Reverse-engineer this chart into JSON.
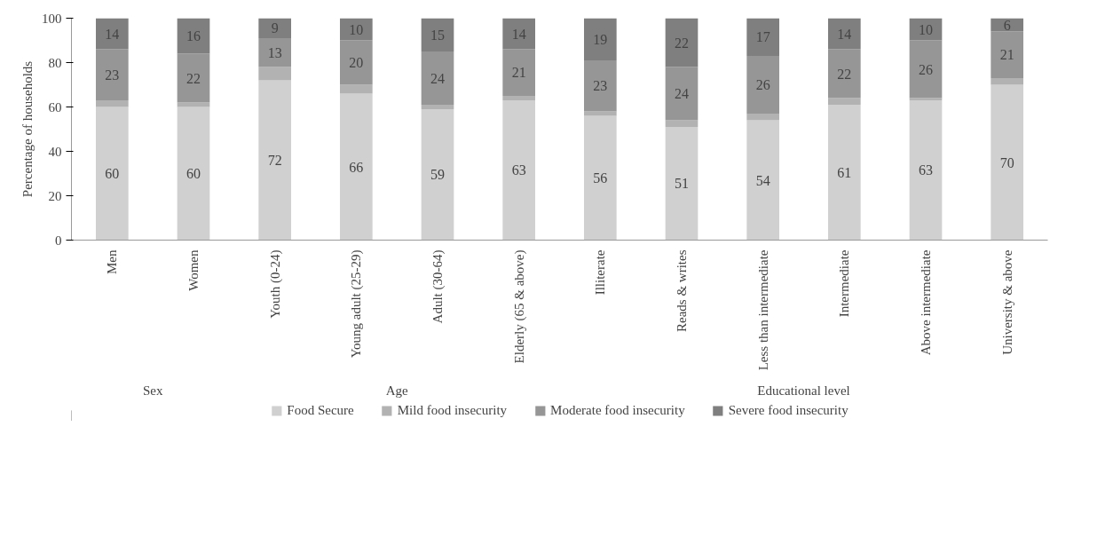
{
  "chart_data": {
    "type": "bar",
    "stacked": true,
    "ylabel": "Percentage of households",
    "categories": [
      "Men",
      "Women",
      "Youth (0-24)",
      "Young adult (25-29)",
      "Adult (30-64)",
      "Elderly (65 & above)",
      "Illiterate",
      "Reads & writes",
      "Less than intermediate",
      "Intermediate",
      "Above intermediate",
      "University & above"
    ],
    "series": [
      {
        "name": "Food Secure",
        "color": "#d0d0d0",
        "values": [
          60,
          60,
          72,
          66,
          59,
          63,
          56,
          51,
          54,
          61,
          63,
          70
        ],
        "value_labels": [
          "60",
          "60",
          "72",
          "66",
          "59",
          "63",
          "56",
          "51",
          "54",
          "61",
          "63",
          "70"
        ]
      },
      {
        "name": "Mild food insecurity",
        "color": "#b2b2b2",
        "values": [
          3,
          2,
          6,
          4,
          2,
          2,
          2,
          3,
          3,
          3,
          1,
          3
        ]
      },
      {
        "name": "Moderate food insecurity",
        "color": "#969696",
        "values": [
          23,
          22,
          13,
          20,
          24,
          21,
          23,
          24,
          26,
          22,
          26,
          21
        ],
        "value_labels": [
          "23",
          "22",
          "13",
          "20",
          "24",
          "21",
          "23",
          "24",
          "26",
          "22",
          "26",
          "21"
        ]
      },
      {
        "name": "Severe food insecurity",
        "color": "#7f7f7f",
        "values": [
          14,
          16,
          9,
          10,
          15,
          14,
          19,
          22,
          17,
          14,
          10,
          6
        ],
        "value_labels": [
          "14",
          "16",
          "9",
          "10",
          "15",
          "14",
          "19",
          "22",
          "17",
          "14",
          "10",
          "6"
        ]
      }
    ],
    "ylim": [
      0,
      100
    ],
    "yticks": [
      0,
      20,
      40,
      60,
      80,
      100
    ],
    "grid": false,
    "legend": "bottom",
    "annotations": [
      "Sex",
      "Age",
      "Educational level"
    ]
  }
}
